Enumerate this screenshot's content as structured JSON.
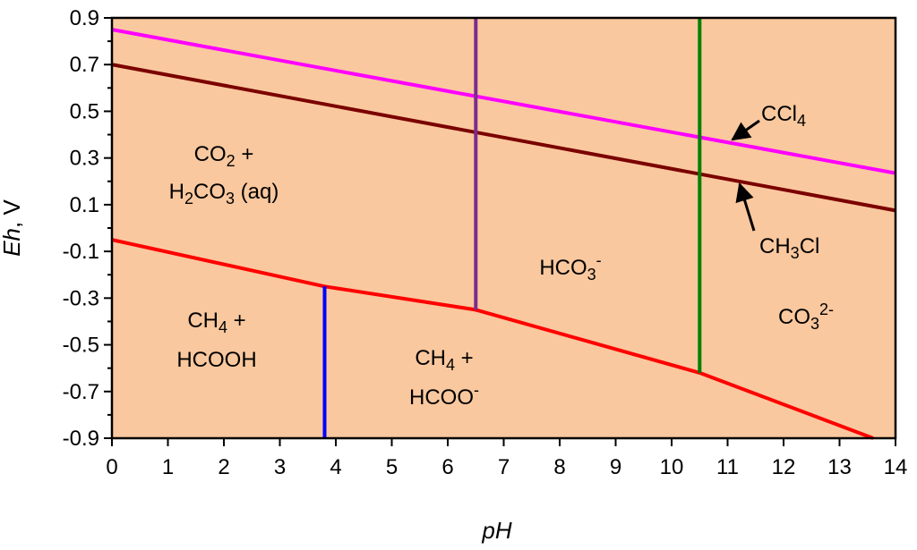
{
  "chart_data": {
    "type": "line",
    "title": "",
    "xlabel": "pH",
    "ylabel_italic": "Eh",
    "ylabel_unit": ", V",
    "xlim": [
      0,
      14
    ],
    "ylim": [
      -0.9,
      0.9
    ],
    "xticks": [
      0,
      1,
      2,
      3,
      4,
      5,
      6,
      7,
      8,
      9,
      10,
      11,
      12,
      13,
      14
    ],
    "yticks": [
      0.9,
      0.7,
      0.5,
      0.3,
      0.1,
      -0.1,
      -0.3,
      -0.5,
      -0.7,
      -0.9
    ],
    "ytick_labels": [
      "0.9",
      "0.7",
      "0.5",
      "0.3",
      "0.1",
      "-0.1",
      "-0.3",
      "-0.5",
      "-0.7",
      "-0.9"
    ],
    "background_color": "#FAC89E",
    "series": [
      {
        "name": "CCl4",
        "color": "#FF00FF",
        "x": [
          0,
          14
        ],
        "y": [
          0.85,
          0.235
        ]
      },
      {
        "name": "CH3Cl",
        "color": "#7B0000",
        "x": [
          0,
          14
        ],
        "y": [
          0.7,
          0.075
        ]
      },
      {
        "name": "lower-boundary",
        "color": "#FF0000",
        "x": [
          0,
          3.8,
          6.5,
          10.5,
          13.6
        ],
        "y": [
          -0.05,
          -0.25,
          -0.35,
          -0.62,
          -0.9
        ]
      },
      {
        "name": "pH-3.8-boundary",
        "color": "#0000FF",
        "x": [
          3.8,
          3.8
        ],
        "y": [
          -0.9,
          -0.25
        ]
      },
      {
        "name": "pH-6.5-boundary",
        "color": "#7B2C8C",
        "x": [
          6.5,
          6.5
        ],
        "y": [
          0.9,
          -0.35
        ]
      },
      {
        "name": "pH-10.5-boundary",
        "color": "#008000",
        "x": [
          10.5,
          10.5
        ],
        "y": [
          0.9,
          -0.62
        ]
      }
    ],
    "region_labels": {
      "co2_line1": {
        "parts": [
          [
            "CO",
            ""
          ],
          [
            "2",
            "sub"
          ],
          [
            " +",
            ""
          ]
        ]
      },
      "co2_line2": {
        "parts": [
          [
            "H",
            ""
          ],
          [
            "2",
            "sub"
          ],
          [
            "CO",
            ""
          ],
          [
            "3",
            "sub"
          ],
          [
            " (aq)",
            ""
          ]
        ]
      },
      "hco3": {
        "parts": [
          [
            "HCO",
            ""
          ],
          [
            "3",
            "sub"
          ],
          [
            "-",
            "sup"
          ]
        ]
      },
      "co3": {
        "parts": [
          [
            "CO",
            ""
          ],
          [
            "3",
            "sub"
          ],
          [
            "2-",
            "sup"
          ]
        ]
      },
      "ch4_left_line1": {
        "parts": [
          [
            "CH",
            ""
          ],
          [
            "4",
            "sub"
          ],
          [
            "  +",
            ""
          ]
        ]
      },
      "ch4_left_line2": {
        "parts": [
          [
            "HCOOH",
            ""
          ]
        ]
      },
      "ch4_mid_line1": {
        "parts": [
          [
            "CH",
            ""
          ],
          [
            "4",
            "sub"
          ],
          [
            " +",
            ""
          ]
        ]
      },
      "ch4_mid_line2": {
        "parts": [
          [
            "HCOO",
            ""
          ],
          [
            "-",
            "sup"
          ]
        ]
      },
      "ccl4": {
        "parts": [
          [
            "CCl",
            ""
          ],
          [
            "4",
            "sub"
          ]
        ]
      },
      "ch3cl": {
        "parts": [
          [
            "CH",
            ""
          ],
          [
            "3",
            "sub"
          ],
          [
            "Cl",
            ""
          ]
        ]
      }
    }
  }
}
